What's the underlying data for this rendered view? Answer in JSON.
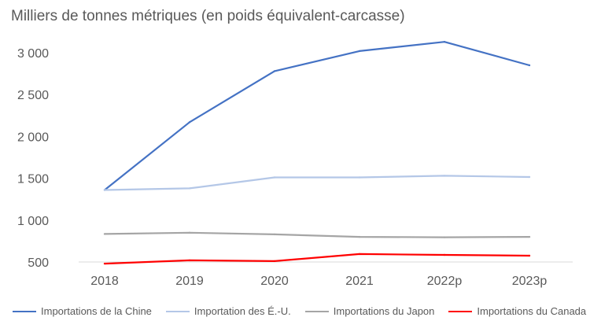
{
  "chart_data": {
    "type": "line",
    "ylabel": "Milliers de tonnes métriques (en poids équivalent-carcasse)",
    "xlabel": "",
    "categories": [
      "2018",
      "2019",
      "2020",
      "2021",
      "2022p",
      "2023p"
    ],
    "yticks": [
      "500",
      "1 000",
      "1 500",
      "2 000",
      "2 500",
      "3 000"
    ],
    "ylim": [
      500,
      3000
    ],
    "grid": false,
    "legend_position": "bottom",
    "series": [
      {
        "name": "Importations de la Chine",
        "color": "#4472C4",
        "values": [
          1360,
          2170,
          2780,
          3020,
          3130,
          2850
        ]
      },
      {
        "name": "Importation des É.-U.",
        "color": "#B4C7E7",
        "values": [
          1360,
          1380,
          1510,
          1510,
          1530,
          1515
        ]
      },
      {
        "name": "Importations du Japon",
        "color": "#A5A5A5",
        "values": [
          835,
          850,
          830,
          800,
          795,
          800
        ]
      },
      {
        "name": "Importations du Canada",
        "color": "#FF0000",
        "values": [
          480,
          520,
          510,
          595,
          585,
          575
        ]
      }
    ]
  }
}
